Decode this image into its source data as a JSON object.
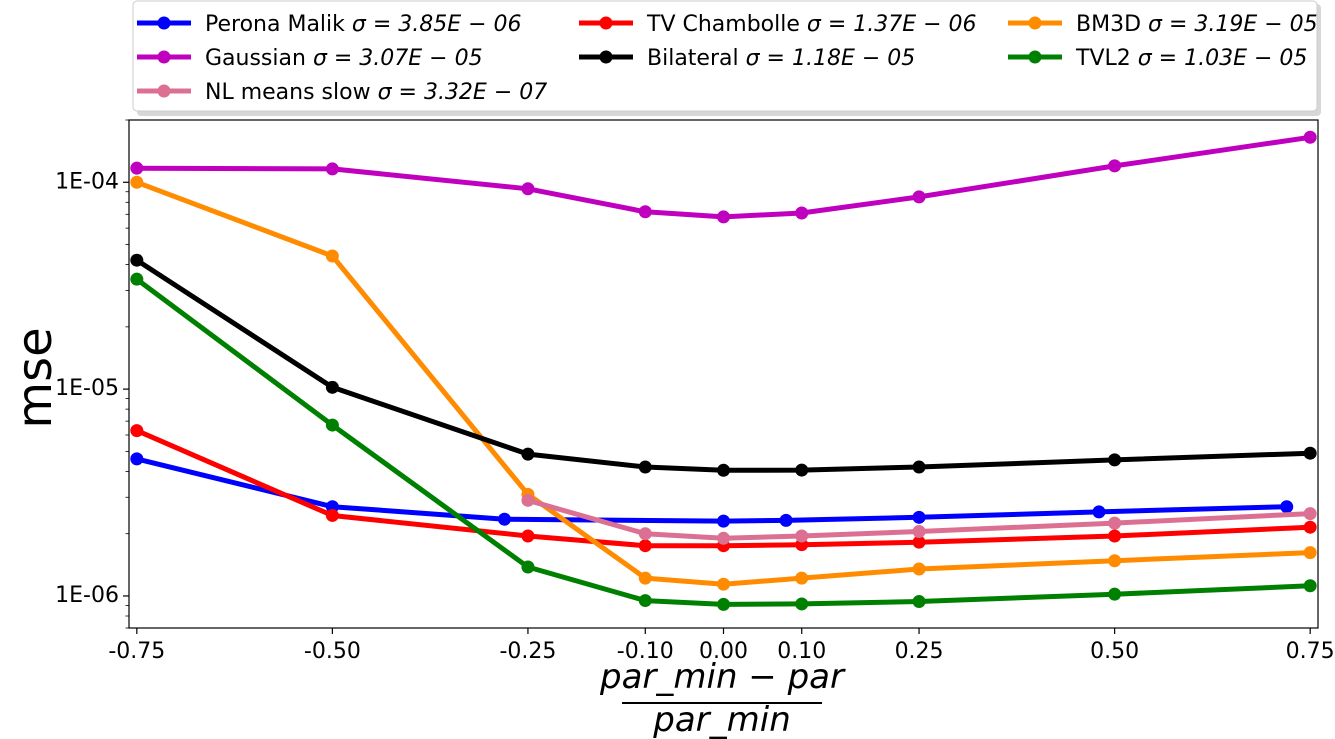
{
  "chart_data": {
    "type": "line",
    "title": "",
    "ylabel": "mse",
    "xlabel": {
      "numerator": "par_min − par",
      "denominator": "par_min"
    },
    "yscale": "log",
    "ylim": [
      7e-07,
      0.0002
    ],
    "xlim": [
      -0.76,
      0.76
    ],
    "grid": false,
    "legend_placement": "top, above plot, 3 columns",
    "x_ticks": [
      -0.75,
      -0.5,
      -0.25,
      -0.1,
      0.0,
      0.1,
      0.25,
      0.5,
      0.75
    ],
    "x_tick_labels": [
      "-0.75",
      "-0.50",
      "-0.25",
      "-0.10",
      "0.00",
      "0.10",
      "0.25",
      "0.50",
      "0.75"
    ],
    "y_ticks": [
      1e-06,
      1e-05,
      0.0001
    ],
    "y_tick_labels": [
      "1E-06",
      "1E-05",
      "1E-04"
    ],
    "series": [
      {
        "name": "Perona Malik σ = 3.85E − 06",
        "color": "#0000ff",
        "x": [
          -0.75,
          -0.5,
          -0.28,
          0.0,
          0.08,
          0.25,
          0.48,
          0.72
        ],
        "y": [
          4.6e-06,
          2.7e-06,
          2.35e-06,
          2.3e-06,
          2.32e-06,
          2.4e-06,
          2.55e-06,
          2.7e-06
        ]
      },
      {
        "name": "TV Chambolle σ = 1.37E − 06",
        "color": "#ff0000",
        "x": [
          -0.75,
          -0.5,
          -0.25,
          -0.1,
          0.0,
          0.1,
          0.25,
          0.5,
          0.75
        ],
        "y": [
          6.3e-06,
          2.45e-06,
          1.95e-06,
          1.75e-06,
          1.75e-06,
          1.77e-06,
          1.82e-06,
          1.95e-06,
          2.15e-06
        ]
      },
      {
        "name": "BM3D σ = 3.19E − 05",
        "color": "#ff8c00",
        "x": [
          -0.75,
          -0.5,
          -0.25,
          -0.1,
          0.0,
          0.1,
          0.25,
          0.5,
          0.75
        ],
        "y": [
          0.0001,
          4.4e-05,
          3.1e-06,
          1.22e-06,
          1.14e-06,
          1.22e-06,
          1.35e-06,
          1.48e-06,
          1.62e-06
        ]
      },
      {
        "name": "Gaussian σ = 3.07E − 05",
        "color": "#bf00bf",
        "x": [
          -0.75,
          -0.5,
          -0.25,
          -0.1,
          0.0,
          0.1,
          0.25,
          0.5,
          0.75
        ],
        "y": [
          0.000117,
          0.000116,
          9.3e-05,
          7.2e-05,
          6.8e-05,
          7.1e-05,
          8.5e-05,
          0.00012,
          0.000165
        ]
      },
      {
        "name": "Bilateral σ = 1.18E − 05",
        "color": "#000000",
        "x": [
          -0.75,
          -0.5,
          -0.25,
          -0.1,
          0.0,
          0.1,
          0.25,
          0.5,
          0.75
        ],
        "y": [
          4.2e-05,
          1.02e-05,
          4.85e-06,
          4.2e-06,
          4.05e-06,
          4.06e-06,
          4.2e-06,
          4.55e-06,
          4.9e-06
        ]
      },
      {
        "name": "TVL2 σ = 1.03E − 05",
        "color": "#008000",
        "x": [
          -0.75,
          -0.5,
          -0.25,
          -0.1,
          0.0,
          0.1,
          0.25,
          0.5,
          0.75
        ],
        "y": [
          3.4e-05,
          6.7e-06,
          1.38e-06,
          9.5e-07,
          9.1e-07,
          9.15e-07,
          9.4e-07,
          1.02e-06,
          1.12e-06
        ]
      },
      {
        "name": "NL means slow σ = 3.32E − 07",
        "color": "#db7093",
        "x": [
          -0.25,
          -0.1,
          0.0,
          0.1,
          0.25,
          0.5,
          0.75
        ],
        "y": [
          2.9e-06,
          2e-06,
          1.9e-06,
          1.95e-06,
          2.05e-06,
          2.25e-06,
          2.5e-06
        ]
      }
    ]
  },
  "legend": {
    "columns": [
      [
        {
          "label": "Perona Malik",
          "sigma": "σ = 3.85E − 06",
          "series_index": 0
        },
        {
          "label": "Gaussian",
          "sigma": "σ = 3.07E − 05",
          "series_index": 3
        },
        {
          "label": "NL means slow",
          "sigma": "σ = 3.32E − 07",
          "series_index": 6
        }
      ],
      [
        {
          "label": "TV Chambolle",
          "sigma": "σ = 1.37E − 06",
          "series_index": 1
        },
        {
          "label": "Bilateral",
          "sigma": "σ = 1.18E − 05",
          "series_index": 4
        }
      ],
      [
        {
          "label": "BM3D",
          "sigma": "σ = 3.19E − 05",
          "series_index": 2
        },
        {
          "label": "TVL2",
          "sigma": "σ = 1.03E − 05",
          "series_index": 5
        }
      ]
    ]
  }
}
